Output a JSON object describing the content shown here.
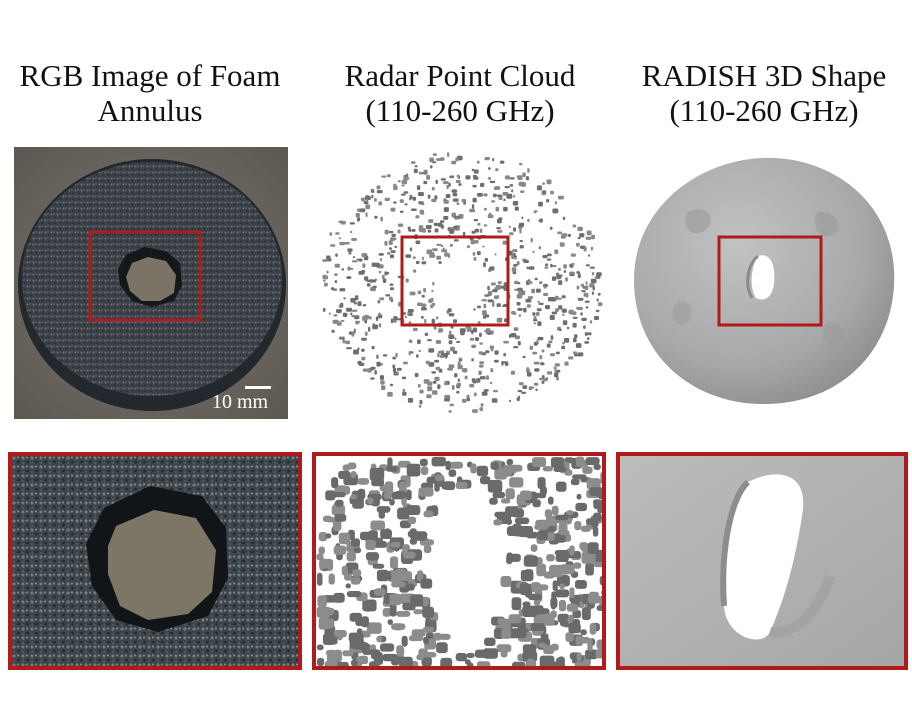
{
  "columns": [
    {
      "title_line1": "RGB Image of Foam",
      "title_line2": "Annulus"
    },
    {
      "title_line1": "Radar Point Cloud",
      "title_line2": "(110-260 GHz)"
    },
    {
      "title_line1": "RADISH 3D Shape",
      "title_line2": "(110-260 GHz)"
    }
  ],
  "scale_bar": {
    "label": "10 mm"
  },
  "colors": {
    "highlight_box": "#b01a1a",
    "foam": "#3b4147",
    "point_cloud": "#6b6b6b",
    "shape": "#a9a9a9"
  }
}
